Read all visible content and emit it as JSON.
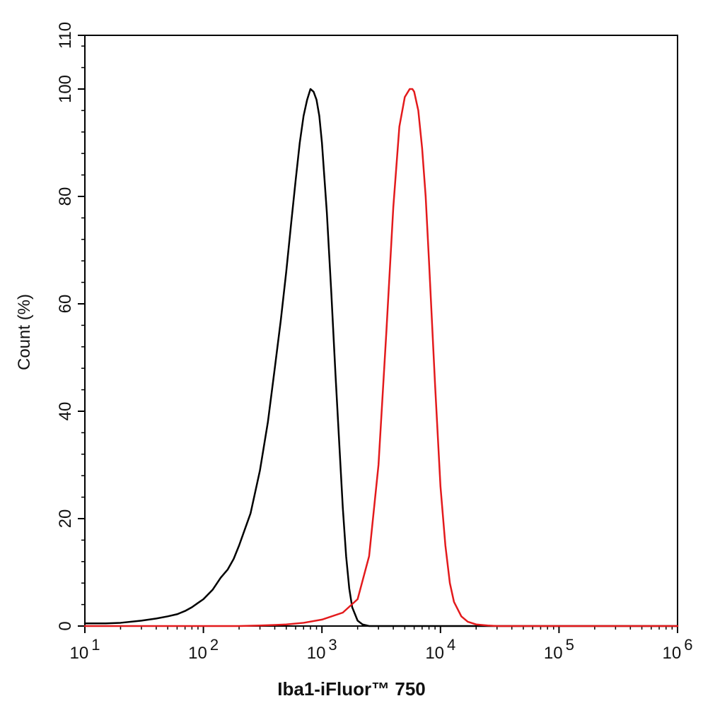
{
  "chart_data": {
    "type": "line",
    "xlabel": "Iba1-iFluor™ 750",
    "ylabel": "Count  (%)",
    "x_scale": "log",
    "xlim": [
      10,
      1000000
    ],
    "ylim": [
      0,
      110
    ],
    "x_ticks": [
      {
        "value": 10,
        "base": "10",
        "exp": "1"
      },
      {
        "value": 100,
        "base": "10",
        "exp": "2"
      },
      {
        "value": 1000,
        "base": "10",
        "exp": "3"
      },
      {
        "value": 10000,
        "base": "10",
        "exp": "4"
      },
      {
        "value": 100000,
        "base": "10",
        "exp": "5"
      },
      {
        "value": 1000000,
        "base": "10",
        "exp": "6"
      }
    ],
    "y_ticks": [
      "0",
      "20",
      "40",
      "60",
      "80",
      "100",
      "110"
    ],
    "y_tick_values": [
      0,
      20,
      40,
      60,
      80,
      100,
      110
    ],
    "grid": false,
    "series": [
      {
        "color": "#000000",
        "x": [
          10,
          15,
          20,
          30,
          40,
          50,
          60,
          70,
          80,
          90,
          100,
          120,
          140,
          160,
          180,
          200,
          250,
          300,
          350,
          400,
          450,
          500,
          550,
          600,
          650,
          700,
          750,
          800,
          850,
          900,
          950,
          1000,
          1100,
          1200,
          1300,
          1400,
          1500,
          1600,
          1700,
          1800,
          2000,
          2200,
          2500,
          3000,
          4000,
          5000,
          10000,
          1000000
        ],
        "y": [
          0.5,
          0.5,
          0.6,
          1.0,
          1.4,
          1.8,
          2.2,
          2.8,
          3.5,
          4.3,
          5.0,
          6.8,
          9.0,
          10.5,
          12.5,
          15,
          21,
          29,
          38,
          48,
          57,
          66,
          75,
          83,
          90,
          95,
          98,
          100,
          99.5,
          98,
          95,
          90,
          77,
          62,
          47,
          34,
          22,
          13,
          7,
          3.5,
          1.0,
          0.3,
          0,
          0,
          0,
          0,
          0,
          0
        ]
      },
      {
        "color": "#e31a1c",
        "x": [
          10,
          200,
          300,
          400,
          500,
          700,
          1000,
          1500,
          2000,
          2500,
          3000,
          3500,
          4000,
          4500,
          5000,
          5500,
          5800,
          6000,
          6500,
          7000,
          7500,
          8000,
          9000,
          10000,
          11000,
          12000,
          13000,
          15000,
          17000,
          20000,
          25000,
          30000,
          1000000
        ],
        "y": [
          0,
          0,
          0.1,
          0.2,
          0.3,
          0.6,
          1.2,
          2.5,
          5,
          13,
          30,
          55,
          78,
          93,
          98.5,
          100,
          100,
          99.5,
          96,
          89,
          80,
          68,
          45,
          26,
          15,
          8,
          4.5,
          1.8,
          0.8,
          0.3,
          0.1,
          0,
          0
        ]
      }
    ]
  }
}
